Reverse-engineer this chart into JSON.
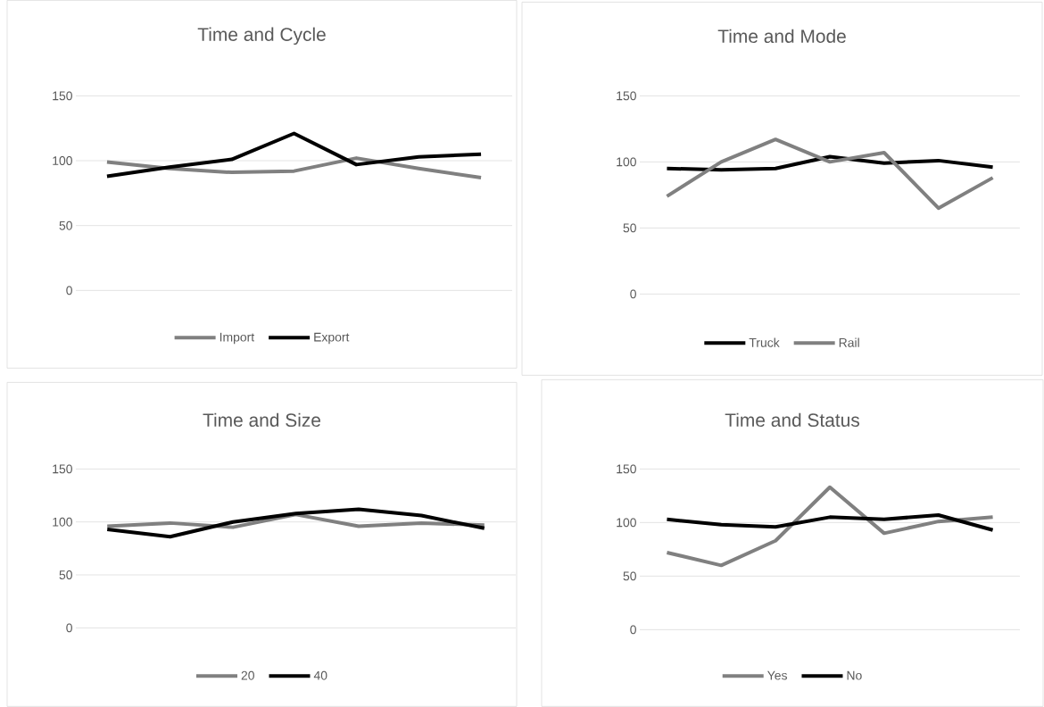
{
  "chart_data": [
    {
      "type": "line",
      "title": "Time and Cycle",
      "categories": [
        null,
        null,
        null,
        null,
        null,
        null,
        null
      ],
      "ylim": [
        0,
        150
      ],
      "yticks": [
        0,
        50,
        100,
        150
      ],
      "grid": "y",
      "tick_labels": "y",
      "legend": "bottom",
      "series": [
        {
          "name": "Import",
          "color": "#808080",
          "values": [
            99,
            94,
            91,
            92,
            102,
            94,
            87
          ]
        },
        {
          "name": "Export",
          "color": "#000000",
          "values": [
            88,
            95,
            101,
            121,
            97,
            103,
            105
          ]
        }
      ]
    },
    {
      "type": "line",
      "title": "Time and Mode",
      "categories": [
        null,
        null,
        null,
        null,
        null,
        null,
        null
      ],
      "ylim": [
        0,
        150
      ],
      "yticks": [
        0,
        50,
        100,
        150
      ],
      "grid": "y",
      "tick_labels": "y",
      "legend": "bottom",
      "series": [
        {
          "name": "Truck",
          "color": "#000000",
          "values": [
            95,
            94,
            95,
            104,
            99,
            101,
            96
          ]
        },
        {
          "name": "Rail",
          "color": "#808080",
          "values": [
            74,
            100,
            117,
            100,
            107,
            65,
            88
          ]
        }
      ]
    },
    {
      "type": "line",
      "title": "Time and Size",
      "categories": [
        null,
        null,
        null,
        null,
        null,
        null,
        null
      ],
      "ylim": [
        0,
        150
      ],
      "yticks": [
        0,
        50,
        100,
        150
      ],
      "grid": "y",
      "tick_labels": "y",
      "legend": "bottom",
      "series": [
        {
          "name": "20",
          "color": "#808080",
          "values": [
            96,
            99,
            95,
            107,
            96,
            99,
            97
          ]
        },
        {
          "name": "40",
          "color": "#000000",
          "values": [
            93,
            86,
            100,
            108,
            112,
            106,
            94
          ]
        }
      ]
    },
    {
      "type": "line",
      "title": "Time and Status",
      "categories": [
        null,
        null,
        null,
        null,
        null,
        null,
        null
      ],
      "ylim": [
        0,
        150
      ],
      "yticks": [
        0,
        50,
        100,
        150
      ],
      "grid": "y",
      "tick_labels": "y",
      "legend": "bottom",
      "series": [
        {
          "name": "Yes",
          "color": "#808080",
          "values": [
            72,
            60,
            83,
            133,
            90,
            101,
            105
          ]
        },
        {
          "name": "No",
          "color": "#000000",
          "values": [
            103,
            98,
            96,
            105,
            103,
            107,
            93
          ]
        }
      ]
    }
  ]
}
